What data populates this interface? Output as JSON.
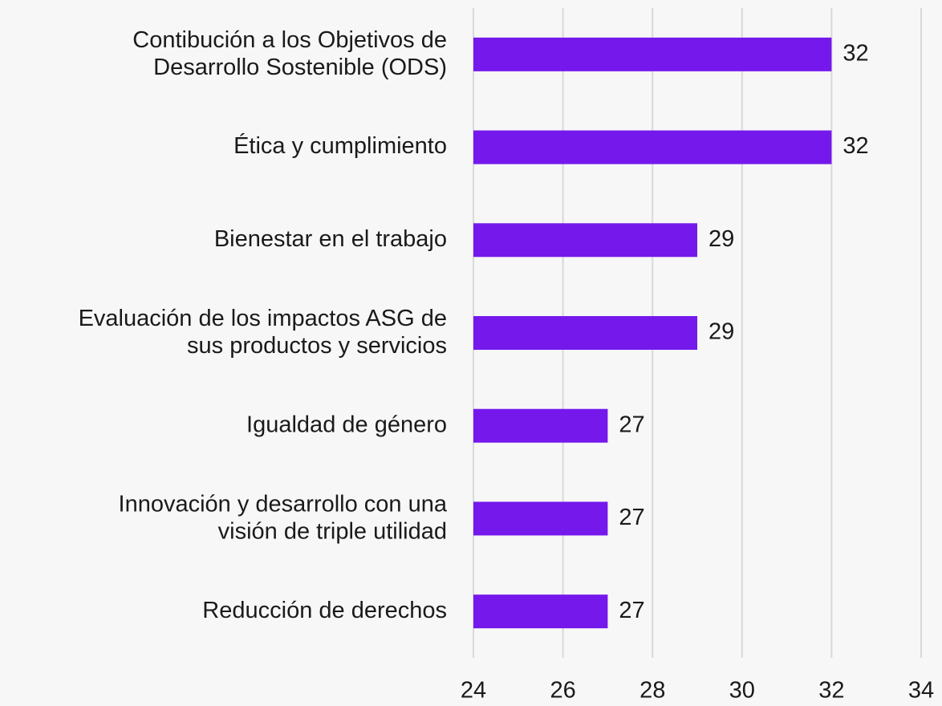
{
  "chart_data": {
    "type": "hbar",
    "categories": [
      "Contibución a los Objetivos de\nDesarrollo Sostenible (ODS)",
      "Ética y cumplimiento",
      "Bienestar en el trabajo",
      "Evaluación de los impactos ASG de\nsus productos y servicios",
      "Igualdad de género",
      "Innovación y desarrollo con una\nvisión de triple utilidad",
      "Reducción de derechos"
    ],
    "values": [
      32,
      32,
      29,
      29,
      27,
      27,
      27
    ],
    "color": "#7518ec",
    "xlim": [
      24,
      34
    ],
    "xticks": [
      24,
      26,
      28,
      30,
      32,
      34
    ],
    "grid": true
  }
}
